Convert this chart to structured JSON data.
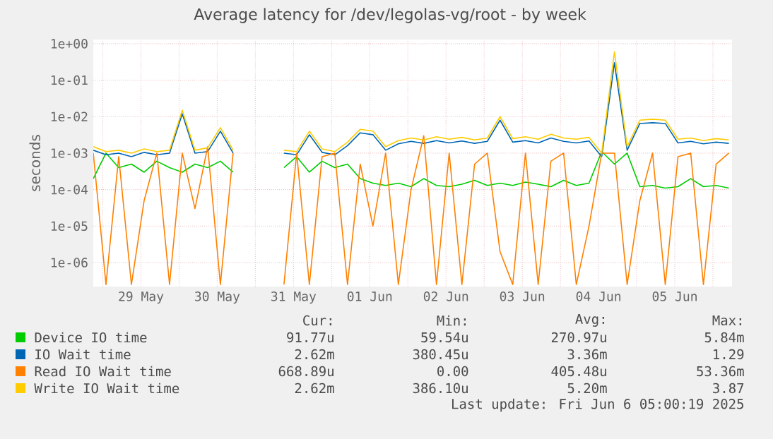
{
  "chart_data": {
    "type": "line",
    "title": "Average latency for /dev/legolas-vg/root - by week",
    "ylabel": "seconds",
    "log": "y",
    "grid": true,
    "legend": "bottom",
    "xlim": [
      "2025-05-28T21:00",
      "2025-06-06T06:00"
    ],
    "ylim": [
      2.2e-07,
      1.3
    ],
    "xticks": [
      {
        "value": "2025-05-29T00:00",
        "label": null
      },
      {
        "value": "2025-05-29T12:00",
        "label": "29 May"
      },
      {
        "value": "2025-05-30T00:00",
        "label": null
      },
      {
        "value": "2025-05-30T12:00",
        "label": "30 May"
      },
      {
        "value": "2025-05-31T00:00",
        "label": null
      },
      {
        "value": "2025-05-31T12:00",
        "label": "31 May"
      },
      {
        "value": "2025-06-01T00:00",
        "label": null
      },
      {
        "value": "2025-06-01T12:00",
        "label": "01 Jun"
      },
      {
        "value": "2025-06-02T00:00",
        "label": null
      },
      {
        "value": "2025-06-02T12:00",
        "label": "02 Jun"
      },
      {
        "value": "2025-06-03T00:00",
        "label": null
      },
      {
        "value": "2025-06-03T12:00",
        "label": "03 Jun"
      },
      {
        "value": "2025-06-04T00:00",
        "label": null
      },
      {
        "value": "2025-06-04T12:00",
        "label": "04 Jun"
      },
      {
        "value": "2025-06-05T00:00",
        "label": null
      },
      {
        "value": "2025-06-05T12:00",
        "label": "05 Jun"
      },
      {
        "value": "2025-06-06T00:00",
        "label": null
      }
    ],
    "yticks": [
      {
        "value": 1e-06,
        "label": "1e-06"
      },
      {
        "value": 1e-05,
        "label": "1e-05"
      },
      {
        "value": 0.0001,
        "label": "1e-04"
      },
      {
        "value": 0.001,
        "label": "1e-03"
      },
      {
        "value": 0.01,
        "label": "1e-02"
      },
      {
        "value": 0.1,
        "label": "1e-01"
      },
      {
        "value": 1,
        "label": "1e+00"
      }
    ],
    "x": [
      "2025-05-28T21:00",
      "2025-05-29T01:00",
      "2025-05-29T05:00",
      "2025-05-29T09:00",
      "2025-05-29T13:00",
      "2025-05-29T17:00",
      "2025-05-29T21:00",
      "2025-05-30T01:00",
      "2025-05-30T05:00",
      "2025-05-30T09:00",
      "2025-05-30T13:00",
      "2025-05-30T17:00",
      "2025-05-30T21:00",
      "2025-05-31T01:00",
      "2025-05-31T05:00",
      "2025-05-31T09:00",
      "2025-05-31T13:00",
      "2025-05-31T17:00",
      "2025-05-31T21:00",
      "2025-06-01T01:00",
      "2025-06-01T05:00",
      "2025-06-01T09:00",
      "2025-06-01T13:00",
      "2025-06-01T17:00",
      "2025-06-01T21:00",
      "2025-06-02T01:00",
      "2025-06-02T05:00",
      "2025-06-02T09:00",
      "2025-06-02T13:00",
      "2025-06-02T17:00",
      "2025-06-02T21:00",
      "2025-06-03T01:00",
      "2025-06-03T05:00",
      "2025-06-03T09:00",
      "2025-06-03T13:00",
      "2025-06-03T17:00",
      "2025-06-03T21:00",
      "2025-06-04T01:00",
      "2025-06-04T05:00",
      "2025-06-04T09:00",
      "2025-06-04T13:00",
      "2025-06-04T17:00",
      "2025-06-04T21:00",
      "2025-06-05T01:00",
      "2025-06-05T05:00",
      "2025-06-05T09:00",
      "2025-06-05T13:00",
      "2025-06-05T17:00",
      "2025-06-05T21:00",
      "2025-06-06T01:00",
      "2025-06-06T05:00"
    ],
    "series": [
      {
        "name": "Device IO time",
        "color": "#00cc00",
        "values": [
          0.0002,
          0.001,
          0.0004,
          0.0005,
          0.0003,
          0.0006,
          0.0004,
          0.0003,
          0.0005,
          0.0004,
          0.0006,
          0.0003,
          null,
          null,
          null,
          0.0004,
          0.0008,
          0.0003,
          0.0006,
          0.0004,
          0.0005,
          0.0002,
          0.00015,
          0.00013,
          0.00015,
          0.00012,
          0.0002,
          0.00013,
          0.00012,
          0.00014,
          0.00018,
          0.00013,
          0.00015,
          0.00013,
          0.00016,
          0.00014,
          0.00012,
          0.00018,
          0.00013,
          0.00015,
          0.0011,
          0.0005,
          0.001,
          0.00012,
          0.00013,
          0.00011,
          0.00012,
          0.0002,
          0.00012,
          0.00013,
          0.00011
        ]
      },
      {
        "name": "IO Wait time",
        "color": "#0066b3",
        "values": [
          0.0012,
          0.0009,
          0.001,
          0.0008,
          0.00105,
          0.0009,
          0.001,
          0.012,
          0.001,
          0.0011,
          0.004,
          0.001,
          null,
          null,
          null,
          0.001,
          0.0009,
          0.0032,
          0.00105,
          0.0009,
          0.0016,
          0.0036,
          0.0032,
          0.0012,
          0.0018,
          0.0021,
          0.00185,
          0.0022,
          0.0019,
          0.00215,
          0.00185,
          0.0021,
          0.008,
          0.002,
          0.0022,
          0.0019,
          0.0026,
          0.0021,
          0.0019,
          0.00215,
          0.0008,
          0.3,
          0.0012,
          0.0065,
          0.0068,
          0.0065,
          0.0019,
          0.0021,
          0.0018,
          0.002,
          0.00185
        ]
      },
      {
        "name": "Read IO Wait time",
        "color": "#ff8000",
        "values": [
          0.001,
          2.5e-07,
          0.0008,
          2.5e-07,
          5e-05,
          0.001,
          2.5e-07,
          0.001,
          3e-05,
          0.0015,
          2.5e-07,
          0.001,
          null,
          null,
          null,
          2.5e-07,
          0.001,
          2.5e-07,
          0.0008,
          0.001,
          2.5e-07,
          0.0005,
          1e-05,
          0.001,
          2.5e-07,
          0.0001,
          0.003,
          2.5e-07,
          0.001,
          2.5e-07,
          0.0005,
          0.001,
          2e-06,
          2.5e-07,
          0.001,
          2.5e-07,
          0.0006,
          0.001,
          2.5e-07,
          1e-05,
          0.001,
          0.001,
          2.5e-07,
          5e-05,
          0.001,
          2.5e-07,
          0.0008,
          0.001,
          2.5e-07,
          0.0005,
          0.001
        ]
      },
      {
        "name": "Write IO Wait time",
        "color": "#ffcc00",
        "values": [
          0.0015,
          0.0011,
          0.0012,
          0.001,
          0.0013,
          0.0011,
          0.0012,
          0.015,
          0.0012,
          0.0014,
          0.005,
          0.0012,
          null,
          null,
          null,
          0.0012,
          0.0011,
          0.004,
          0.0013,
          0.0011,
          0.002,
          0.0045,
          0.004,
          0.0015,
          0.0022,
          0.0026,
          0.0023,
          0.0028,
          0.0024,
          0.0027,
          0.0023,
          0.0026,
          0.01,
          0.0025,
          0.0028,
          0.0024,
          0.0033,
          0.0026,
          0.0024,
          0.0027,
          0.001,
          0.6,
          0.0015,
          0.008,
          0.0085,
          0.008,
          0.0024,
          0.0026,
          0.0022,
          0.0025,
          0.0023
        ]
      }
    ],
    "annotations": [
      "Cur:",
      "Min:",
      "Avg:",
      "Max:",
      "91.77u",
      "59.54u",
      "270.97u",
      "5.84m",
      "2.62m",
      "380.45u",
      "3.36m",
      "1.29",
      "668.89u",
      "0.00",
      "405.48u",
      "53.36m",
      "2.62m",
      "386.10u",
      "5.20m",
      "3.87",
      "Last update: Fri Jun 6 05:00:19 2025"
    ]
  }
}
